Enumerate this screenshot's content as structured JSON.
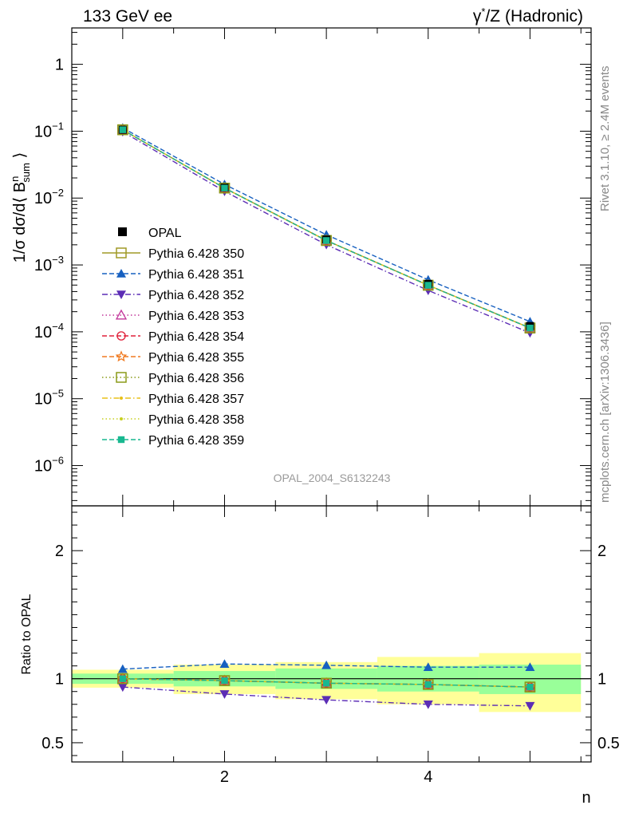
{
  "header": {
    "left_title": "133 GeV ee",
    "right_title_prefix": "γ",
    "right_title_sup": "*",
    "right_title_suffix": "/Z (Hadronic)"
  },
  "side_text": {
    "rivet": "Rivet 3.1.10, ≥ 2.4M events",
    "mcplots": "mcplots.cern.ch [arXiv:1306.3436]"
  },
  "watermark": "OPAL_2004_S6132243",
  "chart_data": [
    {
      "type": "line",
      "panel": "main",
      "ylabel": "1/σ dσ/d⟨ B^n_sum ⟩",
      "yscale": "log",
      "ylim": [
        2.5e-07,
        3.5
      ],
      "xlim": [
        0.5,
        5.6
      ],
      "y_ticks": [
        {
          "value": 1,
          "base": "1",
          "exp": ""
        },
        {
          "value": 0.1,
          "base": "10",
          "exp": "−1"
        },
        {
          "value": 0.01,
          "base": "10",
          "exp": "−2"
        },
        {
          "value": 0.001,
          "base": "10",
          "exp": "−3"
        },
        {
          "value": 0.0001,
          "base": "10",
          "exp": "−4"
        },
        {
          "value": 1e-05,
          "base": "10",
          "exp": "−5"
        },
        {
          "value": 1e-06,
          "base": "10",
          "exp": "−6"
        }
      ],
      "x": [
        1,
        2,
        3,
        4,
        5
      ],
      "data": {
        "name": "OPAL",
        "values": [
          0.105,
          0.0143,
          0.0024,
          0.00052,
          0.000122
        ]
      },
      "legend_position": "middle-left",
      "series": [
        {
          "name": "Pythia 6.428 350",
          "color": "#a09a26",
          "marker": "open-square",
          "dash": "solid",
          "values": [
            0.105,
            0.0141,
            0.00232,
            0.000497,
            0.000114
          ]
        },
        {
          "name": "Pythia 6.428 351",
          "color": "#1760c0",
          "marker": "filled-triangle-up",
          "dash": "dashed",
          "values": [
            0.112,
            0.016,
            0.00283,
            0.0006,
            0.000142
          ]
        },
        {
          "name": "Pythia 6.428 352",
          "color": "#5c2db5",
          "marker": "filled-triangle-down",
          "dash": "dashdot",
          "values": [
            0.0982,
            0.0126,
            0.00201,
            0.000416,
            9.62e-05
          ]
        },
        {
          "name": "Pythia 6.428 353",
          "color": "#c2369a",
          "marker": "open-triangle-up",
          "dash": "dotted",
          "values": [
            0.105,
            0.0141,
            0.00232,
            0.000497,
            0.000114
          ]
        },
        {
          "name": "Pythia 6.428 354",
          "color": "#e0203a",
          "marker": "open-circle",
          "dash": "dashed",
          "values": [
            0.105,
            0.0141,
            0.00232,
            0.000497,
            0.000114
          ]
        },
        {
          "name": "Pythia 6.428 355",
          "color": "#f07a20",
          "marker": "open-star",
          "dash": "dashed",
          "values": [
            0.105,
            0.0141,
            0.00232,
            0.000497,
            0.000114
          ]
        },
        {
          "name": "Pythia 6.428 356",
          "color": "#8a9a18",
          "marker": "open-square",
          "dash": "dotted",
          "values": [
            0.105,
            0.0141,
            0.00232,
            0.000497,
            0.000114
          ]
        },
        {
          "name": "Pythia 6.428 357",
          "color": "#e8c018",
          "marker": "small-dot",
          "dash": "dashdot",
          "values": [
            0.105,
            0.0141,
            0.00232,
            0.000497,
            0.000114
          ]
        },
        {
          "name": "Pythia 6.428 358",
          "color": "#c8d020",
          "marker": "small-dot",
          "dash": "dotted",
          "values": [
            0.105,
            0.0141,
            0.00232,
            0.000497,
            0.000114
          ]
        },
        {
          "name": "Pythia 6.428 359",
          "color": "#18b890",
          "marker": "filled-square",
          "dash": "dashed",
          "values": [
            0.105,
            0.0141,
            0.00232,
            0.000497,
            0.000114
          ]
        }
      ]
    },
    {
      "type": "line",
      "panel": "ratio",
      "ylabel": "Ratio to OPAL",
      "xlabel": "n",
      "ylim": [
        0.35,
        2.35
      ],
      "xlim": [
        0.5,
        5.6
      ],
      "y_ticks": [
        0.5,
        1,
        2
      ],
      "x_ticks": [
        2,
        4
      ],
      "x": [
        1,
        2,
        3,
        4,
        5
      ],
      "band_edges": [
        0.5,
        1.5,
        2.5,
        3.5,
        4.5,
        5.5
      ],
      "yellow_band": [
        [
          0.93,
          1.07
        ],
        [
          0.88,
          1.11
        ],
        [
          0.84,
          1.13
        ],
        [
          0.8,
          1.17
        ],
        [
          0.74,
          1.2
        ]
      ],
      "green_band": [
        [
          0.96,
          1.04
        ],
        [
          0.94,
          1.06
        ],
        [
          0.92,
          1.08
        ],
        [
          0.9,
          1.1
        ],
        [
          0.88,
          1.11
        ]
      ],
      "series": [
        {
          "name": "Pythia 6.428 350",
          "values": [
            1.0,
            0.985,
            0.965,
            0.955,
            0.935
          ]
        },
        {
          "name": "Pythia 6.428 351",
          "values": [
            1.075,
            1.115,
            1.105,
            1.09,
            1.09
          ]
        },
        {
          "name": "Pythia 6.428 352",
          "values": [
            0.935,
            0.88,
            0.835,
            0.8,
            0.788
          ]
        },
        {
          "name": "Pythia 6.428 353",
          "values": [
            1.0,
            0.985,
            0.965,
            0.955,
            0.935
          ]
        },
        {
          "name": "Pythia 6.428 354",
          "values": [
            1.0,
            0.985,
            0.965,
            0.955,
            0.935
          ]
        },
        {
          "name": "Pythia 6.428 355",
          "values": [
            1.0,
            0.985,
            0.965,
            0.955,
            0.935
          ]
        },
        {
          "name": "Pythia 6.428 356",
          "values": [
            1.0,
            0.985,
            0.965,
            0.955,
            0.935
          ]
        },
        {
          "name": "Pythia 6.428 357",
          "values": [
            1.0,
            0.985,
            0.965,
            0.955,
            0.935
          ]
        },
        {
          "name": "Pythia 6.428 358",
          "values": [
            1.0,
            0.985,
            0.965,
            0.955,
            0.935
          ]
        },
        {
          "name": "Pythia 6.428 359",
          "values": [
            1.0,
            0.985,
            0.965,
            0.955,
            0.935
          ]
        }
      ]
    }
  ]
}
